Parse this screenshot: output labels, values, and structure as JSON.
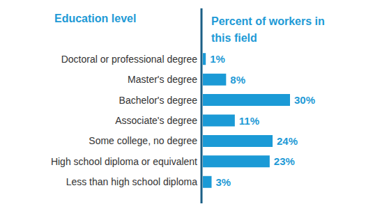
{
  "chart_data": {
    "type": "bar",
    "orientation": "horizontal",
    "ylabel": "Education level",
    "xlabel": "Percent of workers in this field",
    "categories": [
      "Doctoral or professional degree",
      "Master's degree",
      "Bachelor's degree",
      "Associate's degree",
      "Some college, no degree",
      "High school diploma or equivalent",
      "Less than high school diploma"
    ],
    "values": [
      1,
      8,
      30,
      11,
      24,
      23,
      3
    ],
    "value_labels": [
      "1%",
      "8%",
      "30%",
      "11%",
      "24%",
      "23%",
      "3%"
    ],
    "color": "#1b9ad6",
    "xlim": [
      0,
      30
    ],
    "data_labels": true,
    "tick_labels": "y",
    "grid": false
  }
}
